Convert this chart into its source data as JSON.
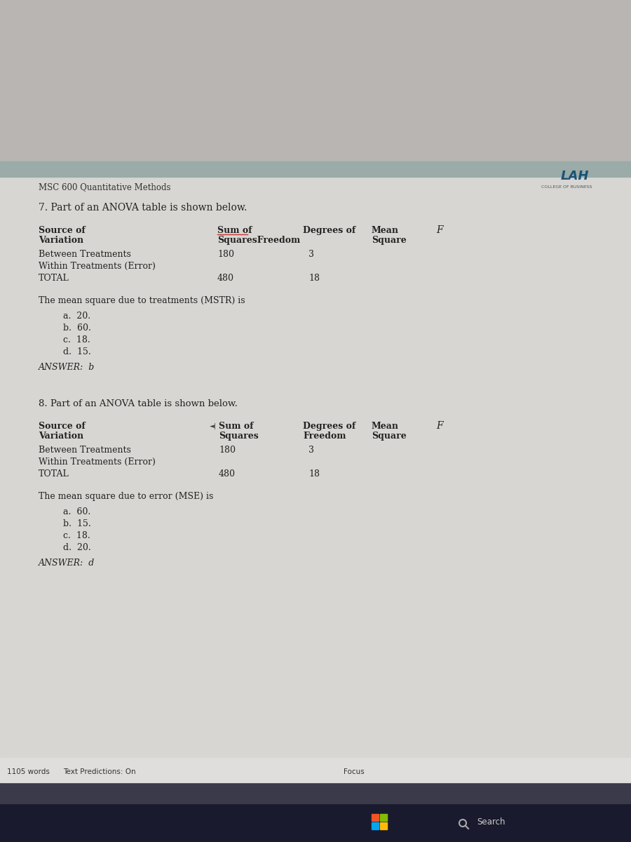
{
  "header_text": "MSC 600 Quantitative Methods",
  "q7_title": "7. Part of an ANOVA table is shown below.",
  "q7_question": "The mean square due to treatments (MSTR) is",
  "q7_choices": [
    "a.  20.",
    "b.  60.",
    "c.  18.",
    "d.  15."
  ],
  "q7_answer": "ANSWER:  b",
  "q8_title": "8. Part of an ANOVA table is shown below.",
  "q8_question": "The mean square due to error (MSE) is",
  "q8_choices": [
    "a.  60.",
    "b.  15.",
    "c.  18.",
    "d.  20."
  ],
  "q8_answer": "ANSWER:  d",
  "footer_words": "1105 words",
  "footer_text": "Text Predictions: On",
  "footer_focus": "Focus",
  "taskbar_search": "Search",
  "bg_bezel": "#b8b5b2",
  "bg_sep": "#9aaba8",
  "bg_content": "#d8d6d3",
  "bg_taskbar": "#1a1a2e",
  "bg_statusbar": "#3a3a4a",
  "bg_wordbar": "#e0dedd",
  "text_color": "#222222",
  "logo_color": "#1a5276"
}
